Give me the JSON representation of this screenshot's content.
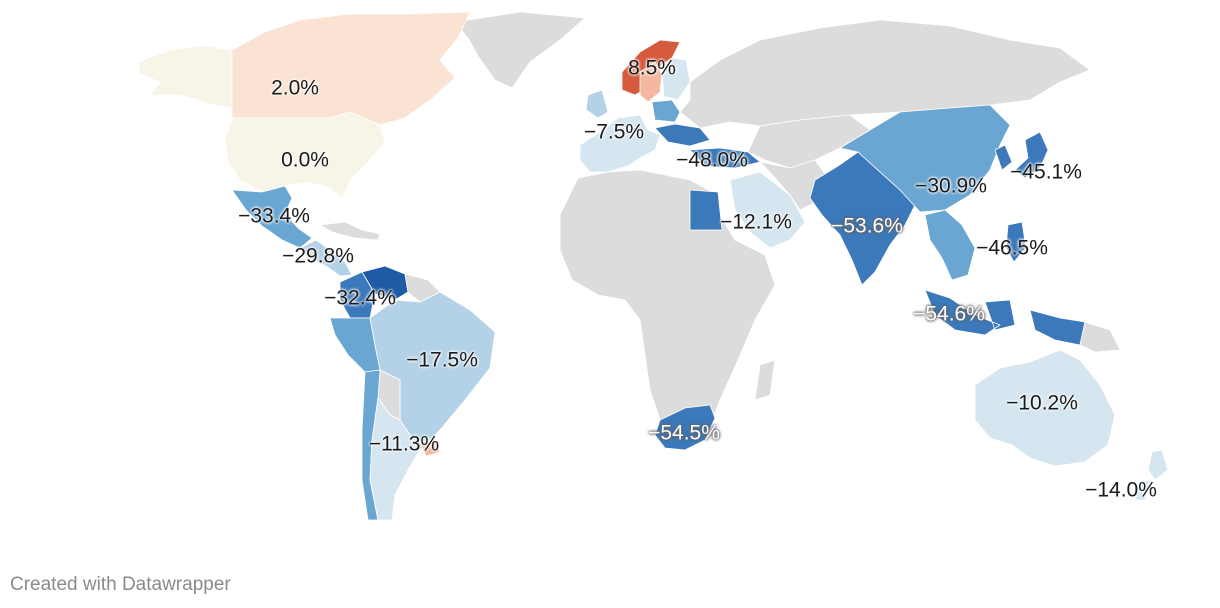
{
  "map": {
    "colors": {
      "nodata": "#dcdcdc",
      "pos_strong": "#d65a3d",
      "pos_mid": "#f4b79f",
      "pos_light": "#fbe3d3",
      "zero": "#f7f4e8",
      "neg_light": "#d5e6f0",
      "neg_lightmid": "#b4d2e7",
      "neg_mid": "#6aa6d2",
      "neg_dark": "#3b79bb",
      "neg_darkest": "#1f5aa6"
    },
    "labels": [
      {
        "id": "canada",
        "text": "2.0%"
      },
      {
        "id": "usa",
        "text": "0.0%"
      },
      {
        "id": "mexico",
        "text": "−33.4%"
      },
      {
        "id": "central-america",
        "text": "−29.8%"
      },
      {
        "id": "colombia",
        "text": "−32.4%"
      },
      {
        "id": "brazil",
        "text": "−17.5%"
      },
      {
        "id": "argentina",
        "text": "−11.3%"
      },
      {
        "id": "norway",
        "text": "8.5%"
      },
      {
        "id": "europe-west",
        "text": "−7.5%"
      },
      {
        "id": "europe-east",
        "text": "−48.0%"
      },
      {
        "id": "middle-east",
        "text": "−12.1%"
      },
      {
        "id": "south-africa",
        "text": "−54.5%"
      },
      {
        "id": "india",
        "text": "−53.6%"
      },
      {
        "id": "china",
        "text": "−30.9%"
      },
      {
        "id": "japan",
        "text": "−45.1%"
      },
      {
        "id": "southeast-asia",
        "text": "−46.5%"
      },
      {
        "id": "indonesia",
        "text": "−54.6%"
      },
      {
        "id": "australia",
        "text": "−10.2%"
      },
      {
        "id": "new-zealand",
        "text": "−14.0%"
      }
    ]
  },
  "footer": {
    "credit": "Created with Datawrapper"
  }
}
